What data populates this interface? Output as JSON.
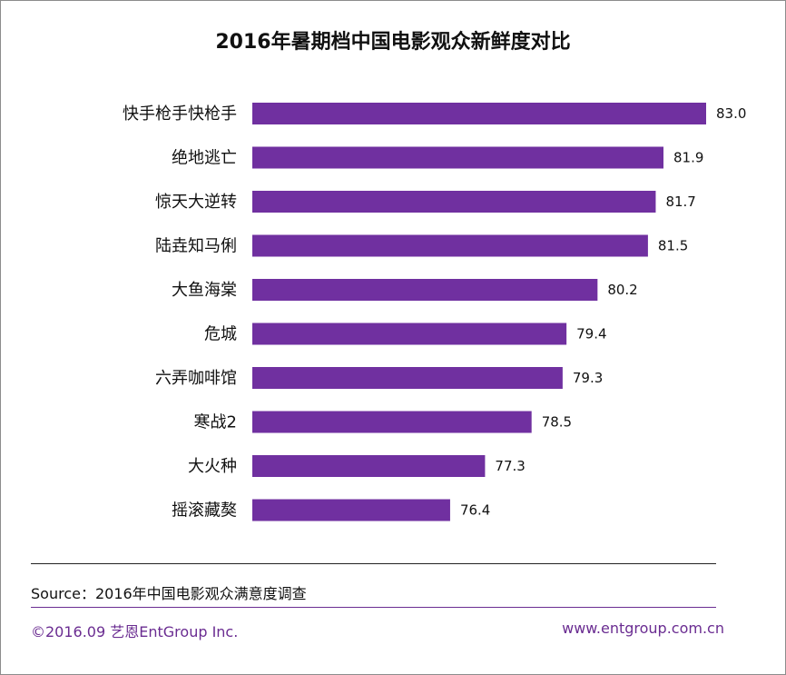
{
  "title": "2016年暑期档中国电影观众新鲜度对比",
  "colors": {
    "bar": "#7030a0",
    "accent": "#6a2c91"
  },
  "chart_data": {
    "type": "bar",
    "orientation": "horizontal",
    "categories": [
      "快手枪手快枪手",
      "绝地逃亡",
      "惊天大逆转",
      "陆垚知马俐",
      "大鱼海棠",
      "危城",
      "六弄咖啡馆",
      "寒战2",
      "大火种",
      "摇滚藏獒"
    ],
    "values": [
      83.0,
      81.9,
      81.7,
      81.5,
      80.2,
      79.4,
      79.3,
      78.5,
      77.3,
      76.4
    ],
    "value_labels": [
      "83.0",
      "81.9",
      "81.7",
      "81.5",
      "80.2",
      "79.4",
      "79.3",
      "78.5",
      "77.3",
      "76.4"
    ],
    "xlim": [
      71.3,
      83.0
    ],
    "grid": false,
    "legend": "none"
  },
  "footer": {
    "source": "Source：2016年中国电影观众满意度调查",
    "copyright": "©2016.09  艺恩EntGroup Inc.",
    "website": "www.entgroup.com.cn"
  }
}
